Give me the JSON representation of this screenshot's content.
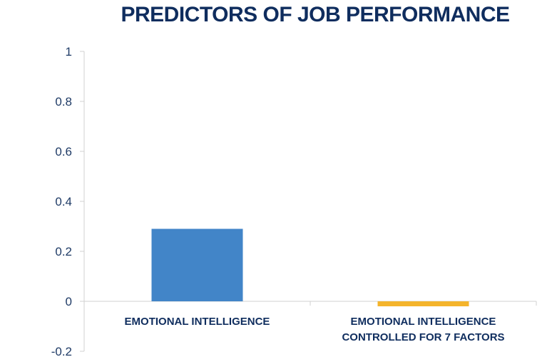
{
  "chart_data": {
    "type": "bar",
    "title": "PREDICTORS OF JOB PERFORMANCE",
    "categories": [
      [
        "EMOTIONAL INTELLIGENCE"
      ],
      [
        "EMOTIONAL INTELLIGENCE",
        "CONTROLLED FOR 7 FACTORS"
      ]
    ],
    "values": [
      0.29,
      -0.02
    ],
    "bar_colors": [
      "#4285c8",
      "#f4b42c"
    ],
    "ylim": [
      -0.2,
      1
    ],
    "yticks": [
      "1",
      "0.8",
      "0.6",
      "0.4",
      "0.2",
      "0",
      "-0.2"
    ],
    "ytick_values": [
      1,
      0.8,
      0.6,
      0.4,
      0.2,
      0,
      -0.2
    ],
    "grid": false,
    "legend": "none",
    "axis_color": "#d0d0d0"
  }
}
